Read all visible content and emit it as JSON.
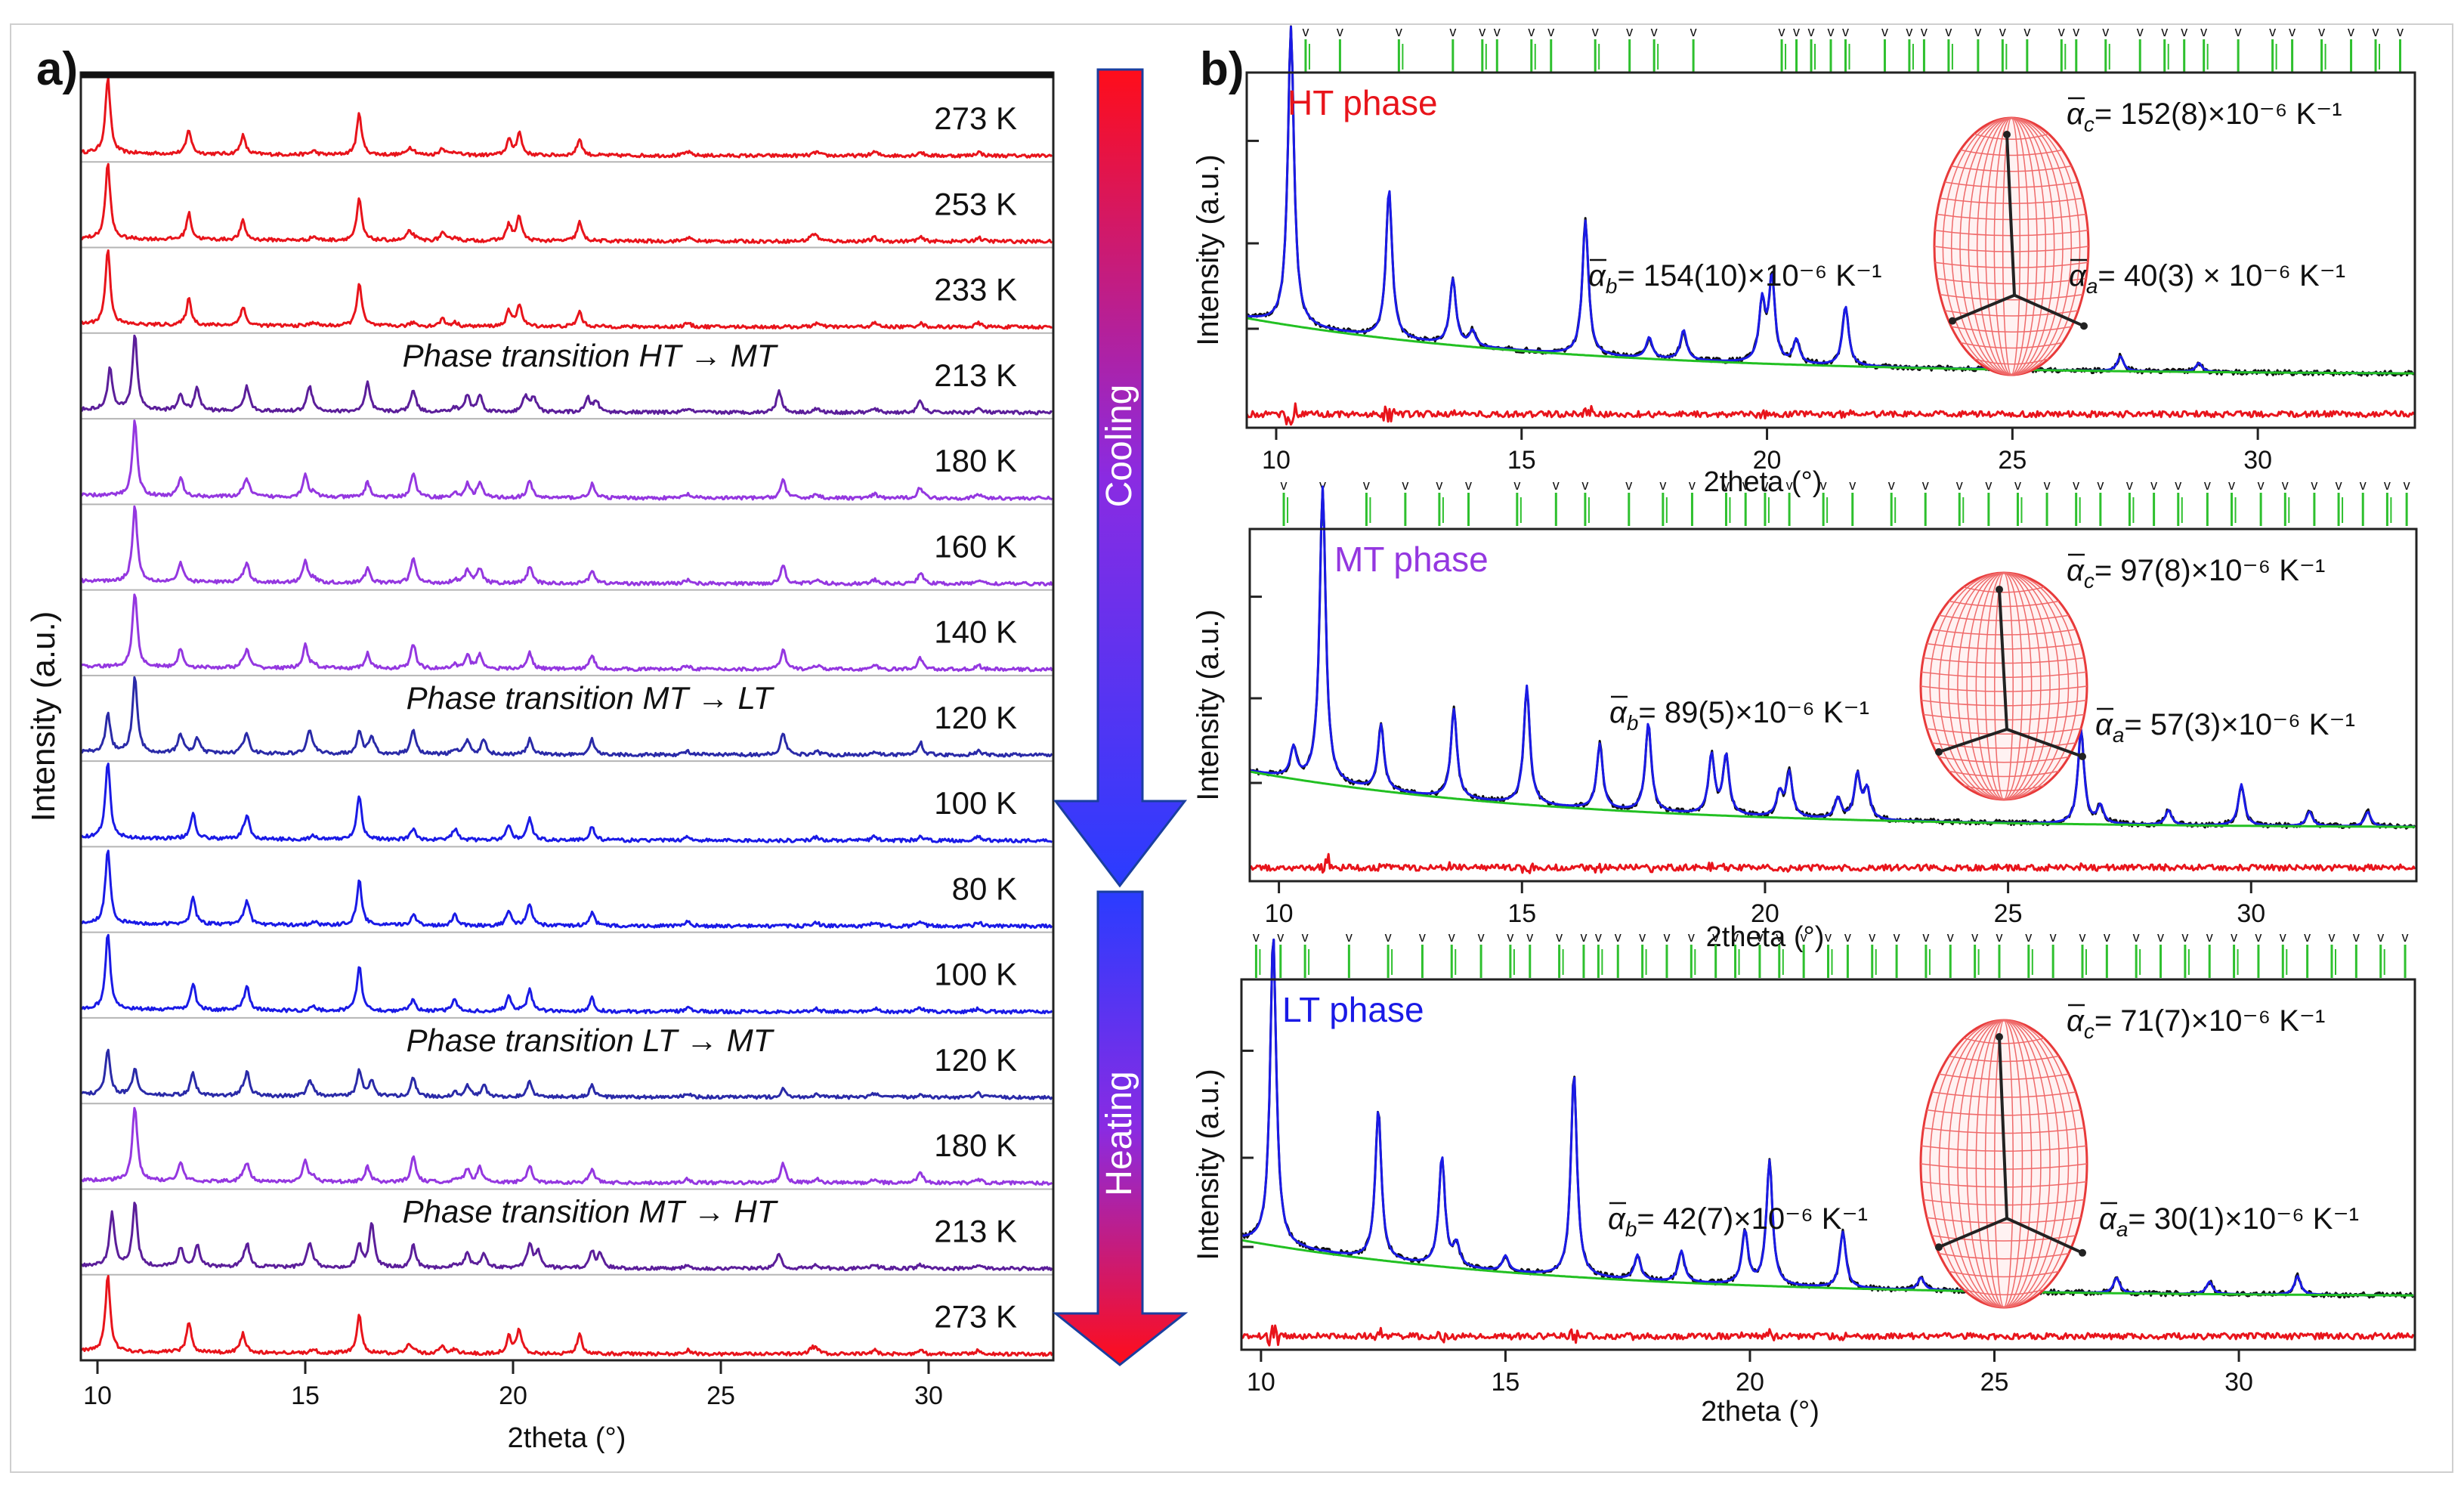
{
  "figure": {
    "panel_a_label": "a)",
    "panel_b_label": "b)",
    "cooling_label": "Cooling",
    "heating_label": "Heating"
  },
  "chart_data": [
    {
      "type": "line",
      "panel": "a",
      "title": "",
      "xlabel": "2theta (°)",
      "ylabel": "Intensity (a.u.)",
      "xlim": [
        9.6,
        33.0
      ],
      "xticks": [
        10,
        15,
        20,
        25,
        30
      ],
      "grid": false,
      "stacked": true,
      "common_peaks": [
        13.5,
        15.2,
        17.6,
        18.6,
        24.2,
        27.3,
        28.7,
        29.8,
        31.2
      ],
      "series": [
        {
          "name": "273 K",
          "color": "#e8141b",
          "peaks": [
            10.25,
            12.2,
            13.5,
            16.3,
            17.5,
            18.3,
            19.9,
            20.15,
            21.6
          ],
          "heights": [
            1.0,
            0.32,
            0.2,
            0.55,
            0.08,
            0.1,
            0.2,
            0.3,
            0.22
          ]
        },
        {
          "name": "253 K",
          "color": "#e8141b",
          "peaks": [
            10.25,
            12.2,
            13.5,
            16.3,
            17.5,
            18.3,
            19.9,
            20.15,
            21.6,
            27.2
          ],
          "heights": [
            1.0,
            0.35,
            0.2,
            0.55,
            0.1,
            0.1,
            0.22,
            0.32,
            0.25,
            0.08
          ]
        },
        {
          "name": "233 K",
          "color": "#e8141b",
          "peaks": [
            10.25,
            12.2,
            13.5,
            16.3,
            18.3,
            19.9,
            20.15,
            21.6
          ],
          "heights": [
            1.0,
            0.35,
            0.2,
            0.58,
            0.1,
            0.2,
            0.3,
            0.2
          ]
        },
        {
          "name": "213 K",
          "color": "#5b1e9a",
          "annotation": "Phase transition HT → MT",
          "peaks": [
            10.3,
            10.9,
            12.0,
            12.4,
            13.6,
            15.1,
            16.5,
            17.6,
            18.9,
            19.2,
            20.3,
            20.5,
            21.8,
            22.0,
            26.4,
            29.8
          ],
          "heights": [
            0.55,
            1.0,
            0.22,
            0.3,
            0.3,
            0.32,
            0.38,
            0.25,
            0.22,
            0.22,
            0.22,
            0.2,
            0.18,
            0.15,
            0.3,
            0.1
          ]
        },
        {
          "name": "180 K",
          "color": "#9437e0",
          "peaks": [
            10.9,
            12.0,
            13.6,
            15.0,
            16.5,
            17.6,
            18.9,
            19.2,
            20.4,
            21.9,
            26.5,
            29.8
          ],
          "heights": [
            1.0,
            0.25,
            0.22,
            0.3,
            0.2,
            0.28,
            0.18,
            0.2,
            0.22,
            0.18,
            0.25,
            0.1
          ]
        },
        {
          "name": "160 K",
          "color": "#9437e0",
          "peaks": [
            10.9,
            12.0,
            13.6,
            15.0,
            16.5,
            17.6,
            18.9,
            19.2,
            20.4,
            21.9,
            26.5,
            29.8
          ],
          "heights": [
            1.0,
            0.25,
            0.22,
            0.3,
            0.2,
            0.28,
            0.18,
            0.2,
            0.22,
            0.18,
            0.25,
            0.1
          ]
        },
        {
          "name": "140 K",
          "color": "#9437e0",
          "peaks": [
            10.9,
            12.0,
            13.6,
            15.0,
            16.5,
            17.6,
            18.9,
            19.2,
            20.4,
            21.9,
            26.5,
            29.8
          ],
          "heights": [
            1.0,
            0.25,
            0.22,
            0.3,
            0.2,
            0.28,
            0.18,
            0.2,
            0.22,
            0.18,
            0.25,
            0.1
          ]
        },
        {
          "name": "120 K",
          "color": "#2a2aa8",
          "annotation": "Phase transition MT → LT",
          "peaks": [
            10.25,
            10.9,
            12.0,
            12.4,
            13.6,
            15.1,
            16.3,
            16.6,
            17.6,
            18.9,
            19.3,
            20.4,
            21.9,
            26.5,
            29.8
          ],
          "heights": [
            0.5,
            1.0,
            0.25,
            0.2,
            0.25,
            0.3,
            0.3,
            0.25,
            0.28,
            0.2,
            0.2,
            0.2,
            0.2,
            0.3,
            0.12
          ]
        },
        {
          "name": "100 K",
          "color": "#1a1ae6",
          "peaks": [
            10.25,
            12.3,
            13.6,
            16.3,
            17.6,
            18.6,
            19.9,
            20.4,
            21.9
          ],
          "heights": [
            1.0,
            0.35,
            0.3,
            0.6,
            0.1,
            0.1,
            0.2,
            0.3,
            0.18
          ]
        },
        {
          "name": "80 K",
          "color": "#1a1ae6",
          "peaks": [
            10.25,
            12.3,
            13.6,
            16.3,
            17.6,
            18.6,
            19.9,
            20.4,
            21.9
          ],
          "heights": [
            1.0,
            0.35,
            0.3,
            0.6,
            0.1,
            0.1,
            0.2,
            0.3,
            0.18
          ]
        },
        {
          "name": "100 K",
          "color": "#1a1ae6",
          "peaks": [
            10.25,
            12.3,
            13.6,
            16.3,
            17.6,
            18.6,
            19.9,
            20.4,
            21.9
          ],
          "heights": [
            1.0,
            0.35,
            0.3,
            0.6,
            0.1,
            0.1,
            0.2,
            0.3,
            0.18
          ]
        },
        {
          "name": "120 K",
          "color": "#2a2aa8",
          "annotation": "Phase transition LT → MT",
          "peaks": [
            10.25,
            10.9,
            12.3,
            13.6,
            15.1,
            16.3,
            16.6,
            17.6,
            18.9,
            19.3,
            20.4,
            21.9,
            26.5
          ],
          "heights": [
            0.6,
            0.35,
            0.3,
            0.3,
            0.2,
            0.35,
            0.2,
            0.2,
            0.15,
            0.15,
            0.2,
            0.15,
            0.12
          ]
        },
        {
          "name": "180 K",
          "color": "#9437e0",
          "peaks": [
            10.9,
            12.0,
            13.6,
            15.0,
            16.5,
            17.6,
            18.9,
            19.2,
            20.4,
            21.9,
            26.5,
            29.8
          ],
          "heights": [
            1.0,
            0.25,
            0.22,
            0.3,
            0.2,
            0.28,
            0.18,
            0.2,
            0.22,
            0.18,
            0.25,
            0.1
          ]
        },
        {
          "name": "213 K",
          "color": "#5b1e9a",
          "annotation": "Phase transition MT → HT",
          "peaks": [
            10.35,
            10.9,
            12.0,
            12.4,
            13.6,
            15.1,
            16.3,
            16.6,
            17.6,
            18.9,
            19.3,
            20.4,
            20.6,
            21.9,
            22.1,
            26.4
          ],
          "heights": [
            0.7,
            0.85,
            0.25,
            0.3,
            0.3,
            0.3,
            0.3,
            0.6,
            0.25,
            0.22,
            0.2,
            0.32,
            0.22,
            0.22,
            0.18,
            0.2
          ]
        },
        {
          "name": "273 K",
          "color": "#e8141b",
          "peaks": [
            10.25,
            12.2,
            13.5,
            16.3,
            17.5,
            18.3,
            19.9,
            20.15,
            21.6,
            27.2
          ],
          "heights": [
            1.0,
            0.4,
            0.2,
            0.5,
            0.1,
            0.1,
            0.22,
            0.32,
            0.25,
            0.08
          ]
        }
      ]
    },
    {
      "type": "line",
      "panel": "b",
      "title": "HT phase",
      "title_color": "#e8141b",
      "xlabel": "2theta (°)",
      "ylabel": "Intensity (a.u.)",
      "xlim": [
        9.4,
        33.2
      ],
      "xticks": [
        10,
        15,
        20,
        25,
        30
      ],
      "series_names": [
        "observed",
        "calculated",
        "background",
        "difference"
      ],
      "series_colors": {
        "observed": "#111111",
        "calculated": "#1a1ae6",
        "background": "#22c022",
        "difference": "#e8141b"
      },
      "peaks": [
        10.3,
        12.3,
        13.6,
        14.0,
        16.3,
        17.6,
        18.3,
        19.9,
        20.1,
        20.6,
        21.6,
        24.7,
        27.2,
        28.8
      ],
      "heights": [
        1.0,
        0.5,
        0.22,
        0.05,
        0.45,
        0.07,
        0.1,
        0.2,
        0.28,
        0.08,
        0.2,
        0.03,
        0.05,
        0.03
      ],
      "tick_positions": [
        10.6,
        11.3,
        12.5,
        13.6,
        14.2,
        14.5,
        15.2,
        15.6,
        16.5,
        17.2,
        17.7,
        18.5,
        20.3,
        20.6,
        20.9,
        21.3,
        21.6,
        22.4,
        22.9,
        23.2,
        23.7,
        24.3,
        24.8,
        25.3,
        26.0,
        26.3,
        26.9,
        27.6,
        28.1,
        28.5,
        28.9,
        29.6,
        30.3,
        30.7,
        31.3,
        31.9,
        32.4,
        32.9
      ],
      "expansion": {
        "alpha_c": "152(8)×10⁻⁶ K⁻¹",
        "alpha_b": "154(10)×10⁻⁶ K⁻¹",
        "alpha_a": "40(3) × 10⁻⁶ K⁻¹"
      }
    },
    {
      "type": "line",
      "panel": "b",
      "title": "MT phase",
      "title_color": "#9437e0",
      "xlabel": "2theta (°)",
      "ylabel": "Intensity (a.u.)",
      "xlim": [
        9.4,
        33.4
      ],
      "xticks": [
        10,
        15,
        20,
        25,
        30
      ],
      "series_names": [
        "observed",
        "calculated",
        "background",
        "difference"
      ],
      "series_colors": {
        "observed": "#111111",
        "calculated": "#1a1ae6",
        "background": "#22c022",
        "difference": "#e8141b"
      },
      "peaks": [
        10.3,
        10.9,
        12.1,
        13.6,
        15.1,
        16.6,
        17.6,
        18.9,
        19.2,
        20.3,
        20.5,
        21.5,
        21.9,
        22.1,
        26.5,
        26.9,
        28.3,
        29.8,
        31.2,
        32.4
      ],
      "heights": [
        0.1,
        1.0,
        0.22,
        0.3,
        0.4,
        0.22,
        0.3,
        0.2,
        0.2,
        0.08,
        0.15,
        0.07,
        0.15,
        0.1,
        0.32,
        0.06,
        0.05,
        0.14,
        0.05,
        0.05
      ],
      "tick_positions": [
        10.1,
        10.9,
        11.8,
        12.6,
        13.3,
        13.9,
        14.9,
        15.7,
        16.3,
        17.2,
        17.9,
        18.5,
        19.2,
        19.6,
        20.0,
        20.5,
        21.2,
        21.8,
        22.6,
        23.3,
        24.0,
        24.6,
        25.2,
        25.8,
        26.4,
        26.9,
        27.5,
        28.0,
        28.5,
        29.1,
        29.6,
        30.2,
        30.7,
        31.3,
        31.8,
        32.3,
        32.8,
        33.2
      ],
      "expansion": {
        "alpha_c": "97(8)×10⁻⁶ K⁻¹",
        "alpha_b": "89(5)×10⁻⁶ K⁻¹",
        "alpha_a": "57(3)×10⁻⁶ K⁻¹"
      }
    },
    {
      "type": "line",
      "panel": "b",
      "title": "LT phase",
      "title_color": "#1a1ae6",
      "xlabel": "2theta (°)",
      "ylabel": "Intensity (a.u.)",
      "xlim": [
        9.6,
        33.6
      ],
      "xticks": [
        10,
        15,
        20,
        25,
        30
      ],
      "series_names": [
        "observed",
        "calculated",
        "background",
        "difference"
      ],
      "series_colors": {
        "observed": "#111111",
        "calculated": "#1a1ae6",
        "background": "#22c022",
        "difference": "#e8141b"
      },
      "peaks": [
        10.25,
        12.4,
        13.7,
        14.0,
        15.0,
        16.4,
        17.7,
        18.6,
        19.9,
        20.4,
        21.9,
        23.5,
        25.1,
        27.5,
        29.4,
        31.2
      ],
      "heights": [
        1.0,
        0.48,
        0.35,
        0.07,
        0.05,
        0.65,
        0.08,
        0.1,
        0.17,
        0.4,
        0.18,
        0.04,
        0.05,
        0.05,
        0.04,
        0.06
      ],
      "tick_positions": [
        9.9,
        10.4,
        10.9,
        11.8,
        12.6,
        13.3,
        13.9,
        14.5,
        15.1,
        15.5,
        16.1,
        16.6,
        16.9,
        17.3,
        17.8,
        18.3,
        18.8,
        19.3,
        19.7,
        20.2,
        20.6,
        21.1,
        21.6,
        22.0,
        22.5,
        23.0,
        23.6,
        24.1,
        24.6,
        25.1,
        25.7,
        26.2,
        26.8,
        27.3,
        27.9,
        28.4,
        28.9,
        29.4,
        29.9,
        30.4,
        30.9,
        31.4,
        31.9,
        32.4,
        32.9,
        33.4
      ],
      "expansion": {
        "alpha_c": "71(7)×10⁻⁶ K⁻¹",
        "alpha_b": "42(7)×10⁻⁶ K⁻¹",
        "alpha_a": "30(1)×10⁻⁶ K⁻¹"
      }
    }
  ]
}
